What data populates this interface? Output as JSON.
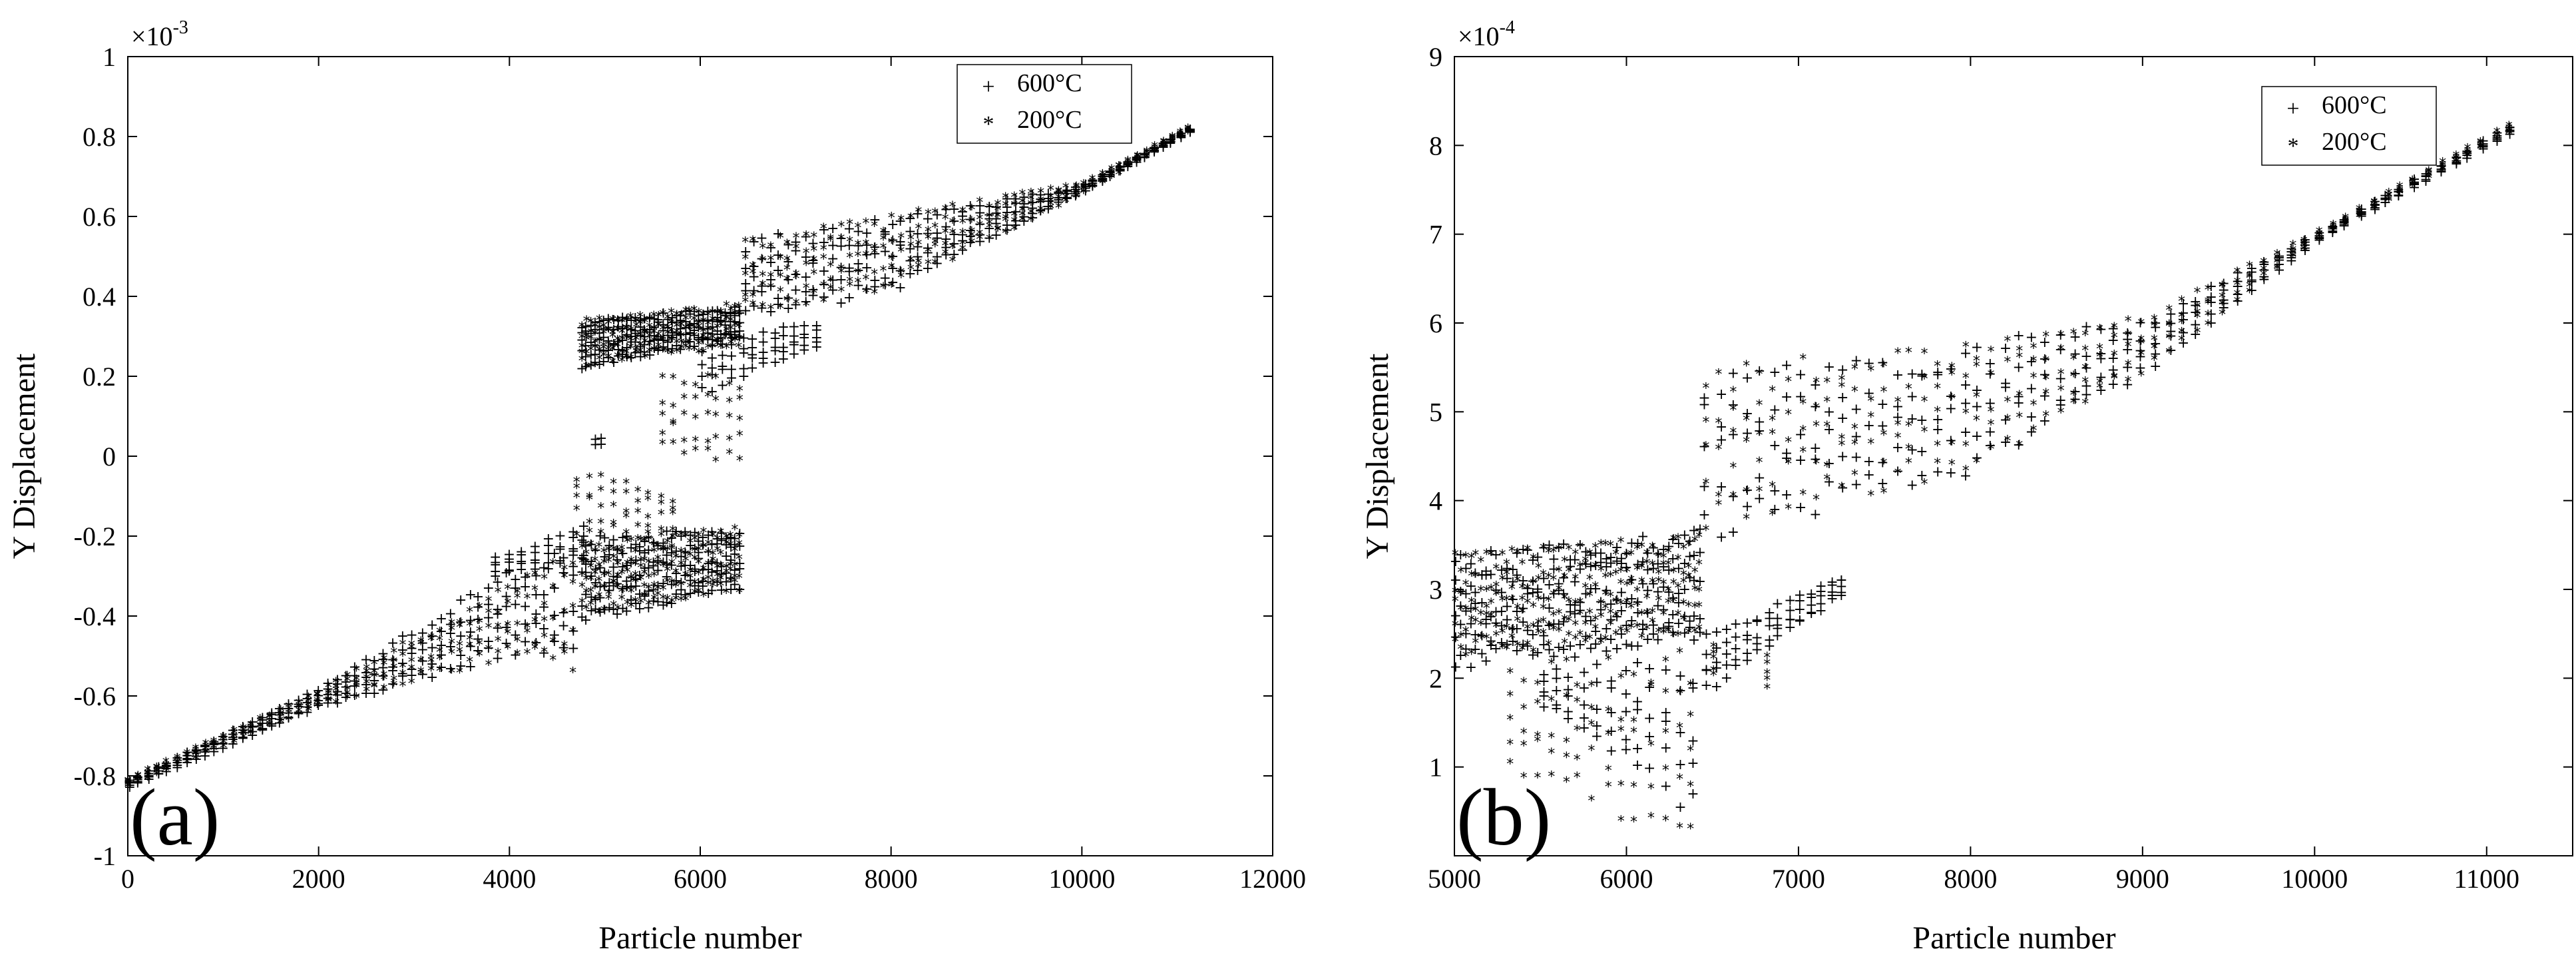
{
  "chart_data": [
    {
      "type": "scatter",
      "panel_label": "(a)",
      "xlabel": "Particle number",
      "ylabel": "Y Displacement",
      "exponent_label": "×10",
      "exponent_power": "-3",
      "xlim": [
        0,
        12000
      ],
      "ylim": [
        -1,
        1
      ],
      "xticks": [
        0,
        2000,
        4000,
        6000,
        8000,
        10000,
        12000
      ],
      "xtick_labels": [
        "0",
        "2000",
        "4000",
        "6000",
        "8000",
        "10000",
        "12000"
      ],
      "yticks": [
        -1,
        -0.8,
        -0.6,
        -0.4,
        -0.2,
        0,
        0.2,
        0.4,
        0.6,
        0.8,
        1
      ],
      "ytick_labels": [
        "-1",
        "-0.8",
        "-0.6",
        "-0.4",
        "-0.2",
        "0",
        "0.2",
        "0.4",
        "0.6",
        "0.8",
        "1"
      ],
      "legend_position": "top-right",
      "series": [
        {
          "name": "600°C",
          "marker": "+",
          "color": "#0000ff",
          "regions": [
            {
              "kind": "band",
              "x0": 0,
              "x1": 4750,
              "lo": [
                [
                  0,
                  -0.83
                ],
                [
                  2000,
                  -0.63
                ],
                [
                  4000,
                  -0.5
                ],
                [
                  4750,
                  -0.52
                ]
              ],
              "hi": [
                [
                  0,
                  -0.81
                ],
                [
                  2000,
                  -0.58
                ],
                [
                  4000,
                  -0.28
                ],
                [
                  4750,
                  -0.2
                ]
              ],
              "n": 240
            },
            {
              "kind": "band",
              "x0": 4750,
              "x1": 6450,
              "lo": [
                [
                  4750,
                  -0.42
                ],
                [
                  6450,
                  -0.33
                ]
              ],
              "hi": [
                [
                  4750,
                  -0.2
                ],
                [
                  6450,
                  -0.17
                ]
              ],
              "n": 180
            },
            {
              "kind": "band",
              "x0": 3850,
              "x1": 4900,
              "lo": [
                [
                  3850,
                  -0.3
                ],
                [
                  4900,
                  -0.27
                ]
              ],
              "hi": [
                [
                  3850,
                  -0.25
                ],
                [
                  4900,
                  -0.16
                ]
              ],
              "n": 40
            },
            {
              "kind": "band",
              "x0": 4750,
              "x1": 6450,
              "lo": [
                [
                  4750,
                  0.22
                ],
                [
                  6450,
                  0.3
                ]
              ],
              "hi": [
                [
                  4750,
                  0.34
                ],
                [
                  6450,
                  0.38
                ]
              ],
              "n": 180
            },
            {
              "kind": "band",
              "x0": 6000,
              "x1": 7300,
              "lo": [
                [
                  6000,
                  0.15
                ],
                [
                  7300,
                  0.28
                ]
              ],
              "hi": [
                [
                  6000,
                  0.3
                ],
                [
                  7300,
                  0.34
                ]
              ],
              "n": 60
            },
            {
              "kind": "band",
              "x0": 6450,
              "x1": 11200,
              "lo": [
                [
                  6450,
                  0.33
                ],
                [
                  8000,
                  0.41
                ],
                [
                  10000,
                  0.66
                ],
                [
                  11200,
                  0.82
                ]
              ],
              "hi": [
                [
                  6450,
                  0.55
                ],
                [
                  8000,
                  0.6
                ],
                [
                  10000,
                  0.68
                ],
                [
                  11200,
                  0.83
                ]
              ],
              "n": 260
            },
            {
              "kind": "band",
              "x0": 4900,
              "x1": 5000,
              "lo": [
                [
                  4900,
                  0.03
                ],
                [
                  5000,
                  0.03
                ]
              ],
              "hi": [
                [
                  4900,
                  0.05
                ],
                [
                  5000,
                  0.05
                ]
              ],
              "n": 2
            }
          ]
        },
        {
          "name": "200°C",
          "marker": "*",
          "color": "#ff0000",
          "regions": [
            {
              "kind": "band",
              "x0": 0,
              "x1": 4750,
              "lo": [
                [
                  0,
                  -0.83
                ],
                [
                  2000,
                  -0.63
                ],
                [
                  4000,
                  -0.51
                ],
                [
                  4750,
                  -0.55
                ]
              ],
              "hi": [
                [
                  0,
                  -0.81
                ],
                [
                  2000,
                  -0.59
                ],
                [
                  4000,
                  -0.32
                ],
                [
                  4750,
                  -0.22
                ]
              ],
              "n": 240
            },
            {
              "kind": "band",
              "x0": 4750,
              "x1": 6450,
              "lo": [
                [
                  4750,
                  -0.4
                ],
                [
                  6450,
                  -0.34
                ]
              ],
              "hi": [
                [
                  4750,
                  -0.22
                ],
                [
                  6450,
                  -0.18
                ]
              ],
              "n": 180
            },
            {
              "kind": "band",
              "x0": 4700,
              "x1": 5800,
              "lo": [
                [
                  4700,
                  -0.2
                ],
                [
                  5800,
                  -0.22
                ]
              ],
              "hi": [
                [
                  4700,
                  -0.03
                ],
                [
                  5800,
                  -0.1
                ]
              ],
              "n": 45
            },
            {
              "kind": "band",
              "x0": 4750,
              "x1": 6450,
              "lo": [
                [
                  4750,
                  0.22
                ],
                [
                  6450,
                  0.27
                ]
              ],
              "hi": [
                [
                  4750,
                  0.34
                ],
                [
                  6450,
                  0.38
                ]
              ],
              "n": 180
            },
            {
              "kind": "band",
              "x0": 5600,
              "x1": 6500,
              "lo": [
                [
                  5600,
                  0.0
                ],
                [
                  6500,
                  -0.03
                ]
              ],
              "hi": [
                [
                  5600,
                  0.2
                ],
                [
                  6500,
                  0.2
                ]
              ],
              "n": 40
            },
            {
              "kind": "band",
              "x0": 6450,
              "x1": 11200,
              "lo": [
                [
                  6450,
                  0.35
                ],
                [
                  8000,
                  0.41
                ],
                [
                  10000,
                  0.65
                ],
                [
                  11200,
                  0.82
                ]
              ],
              "hi": [
                [
                  6450,
                  0.55
                ],
                [
                  8000,
                  0.6
                ],
                [
                  10000,
                  0.68
                ],
                [
                  11200,
                  0.83
                ]
              ],
              "n": 260
            }
          ]
        }
      ]
    },
    {
      "type": "scatter",
      "panel_label": "(b)",
      "xlabel": "Particle number",
      "ylabel": "Y Displacement",
      "exponent_label": "×10",
      "exponent_power": "-4",
      "xlim": [
        5000,
        11500
      ],
      "ylim": [
        0,
        9
      ],
      "xticks": [
        5000,
        6000,
        7000,
        8000,
        9000,
        10000,
        11000
      ],
      "xtick_labels": [
        "5000",
        "6000",
        "7000",
        "8000",
        "9000",
        "10000",
        "11000"
      ],
      "yticks": [
        1,
        2,
        3,
        4,
        5,
        6,
        7,
        8,
        9
      ],
      "ytick_labels": [
        "1",
        "2",
        "3",
        "4",
        "5",
        "6",
        "7",
        "8",
        "9"
      ],
      "legend_position": "top-right",
      "series": [
        {
          "name": "600°C",
          "marker": "+",
          "color": "#0000ff",
          "regions": [
            {
              "kind": "band",
              "x0": 5000,
              "x1": 6450,
              "lo": [
                [
                  5000,
                  2.1
                ],
                [
                  6450,
                  2.4
                ]
              ],
              "hi": [
                [
                  5000,
                  3.4
                ],
                [
                  6450,
                  3.7
                ]
              ],
              "n": 240
            },
            {
              "kind": "band",
              "x0": 5500,
              "x1": 6450,
              "lo": [
                [
                  5500,
                  1.7
                ],
                [
                  6400,
                  0.4
                ]
              ],
              "hi": [
                [
                  5500,
                  2.1
                ],
                [
                  6400,
                  2.3
                ]
              ],
              "n": 60
            },
            {
              "kind": "band",
              "x0": 6450,
              "x1": 7300,
              "lo": [
                [
                  6450,
                  1.8
                ],
                [
                  7300,
                  3.0
                ]
              ],
              "hi": [
                [
                  6450,
                  2.5
                ],
                [
                  7300,
                  3.2
                ]
              ],
              "n": 70
            },
            {
              "kind": "band",
              "x0": 6450,
              "x1": 11200,
              "lo": [
                [
                  6450,
                  3.5
                ],
                [
                  8000,
                  4.3
                ],
                [
                  9000,
                  5.4
                ],
                [
                  10000,
                  6.9
                ],
                [
                  11200,
                  8.2
                ]
              ],
              "hi": [
                [
                  6450,
                  5.5
                ],
                [
                  8000,
                  5.8
                ],
                [
                  9000,
                  6.05
                ],
                [
                  10000,
                  7.0
                ],
                [
                  11200,
                  8.3
                ]
              ],
              "n": 300
            }
          ]
        },
        {
          "name": "200°C",
          "marker": "*",
          "color": "#ff0000",
          "regions": [
            {
              "kind": "band",
              "x0": 5000,
              "x1": 6450,
              "lo": [
                [
                  5000,
                  2.2
                ],
                [
                  6450,
                  2.5
                ]
              ],
              "hi": [
                [
                  5000,
                  3.4
                ],
                [
                  6450,
                  3.6
                ]
              ],
              "n": 240
            },
            {
              "kind": "band",
              "x0": 5300,
              "x1": 6450,
              "lo": [
                [
                  5300,
                  0.9
                ],
                [
                  6400,
                  0.0
                ]
              ],
              "hi": [
                [
                  5300,
                  2.1
                ],
                [
                  6400,
                  2.4
                ]
              ],
              "n": 70
            },
            {
              "kind": "band",
              "x0": 6450,
              "x1": 11200,
              "lo": [
                [
                  6450,
                  3.6
                ],
                [
                  8000,
                  4.3
                ],
                [
                  9000,
                  5.4
                ],
                [
                  10000,
                  6.9
                ],
                [
                  11200,
                  8.2
                ]
              ],
              "hi": [
                [
                  6450,
                  5.5
                ],
                [
                  8000,
                  5.8
                ],
                [
                  9000,
                  6.05
                ],
                [
                  10000,
                  7.0
                ],
                [
                  11200,
                  8.3
                ]
              ],
              "n": 300
            },
            {
              "kind": "band",
              "x0": 6500,
              "x1": 7000,
              "lo": [
                [
                  6500,
                  2.0
                ],
                [
                  7000,
                  1.8
                ]
              ],
              "hi": [
                [
                  6500,
                  2.4
                ],
                [
                  7000,
                  2.2
                ]
              ],
              "n": 10
            }
          ]
        }
      ]
    }
  ]
}
